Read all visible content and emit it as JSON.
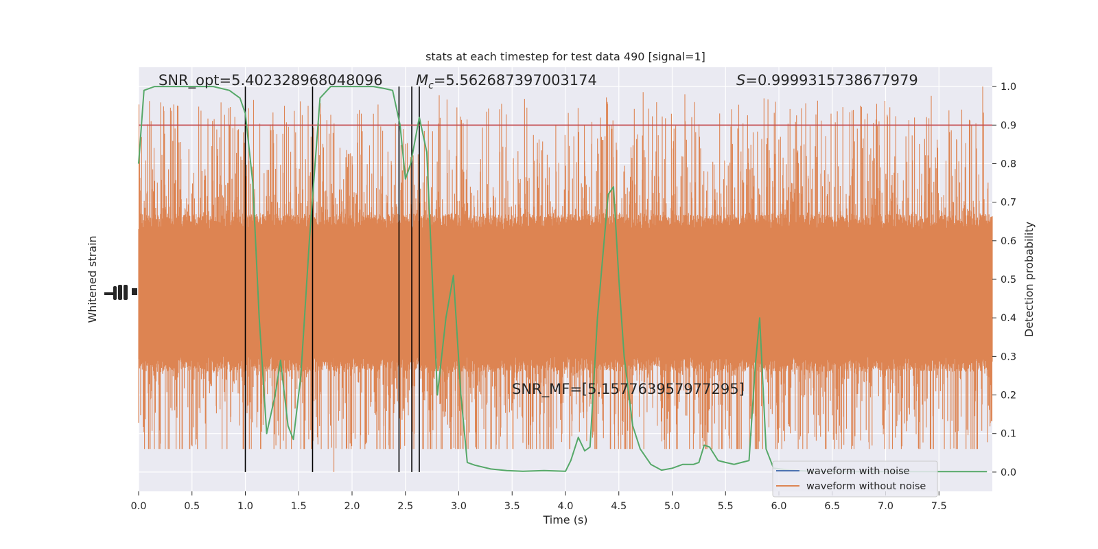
{
  "chart_data": {
    "type": "line",
    "title": "stats at each timestep for test data 490 [signal=1]",
    "xlabel": "Time (s)",
    "ylabel_left": "Whitened strain",
    "ylabel_right": "Detection probability",
    "xlim": [
      0.0,
      8.0
    ],
    "ylim_right": [
      -0.05,
      1.05
    ],
    "x_ticks": [
      "0.0",
      "0.5",
      "1.0",
      "1.5",
      "2.0",
      "2.5",
      "3.0",
      "3.5",
      "4.0",
      "4.5",
      "5.0",
      "5.5",
      "6.0",
      "6.5",
      "7.0",
      "7.5"
    ],
    "right_ticks": [
      "0.0",
      "0.1",
      "0.2",
      "0.3",
      "0.4",
      "0.5",
      "0.6",
      "0.7",
      "0.8",
      "0.9",
      "1.0"
    ],
    "grid": true,
    "legend_position": "lower-right",
    "annotations": {
      "snr_opt": "SNR_opt=5.402328968048096",
      "mc_symbol": "M",
      "mc_subscript": "c",
      "mc_value": "=5.562687397003174",
      "s_symbol": "S",
      "s_value": "=0.9999315738677979",
      "snr_mf": "SNR_MF=[5.157763957977295]"
    },
    "threshold": {
      "y": 0.9,
      "color": "#c44e52"
    },
    "vertical_lines_x": [
      1.0,
      1.63,
      2.44,
      2.56,
      2.63
    ],
    "series": [
      {
        "name": "waveform with noise",
        "color": "#4c72b0"
      },
      {
        "name": "waveform without noise",
        "color": "#dd8452"
      }
    ],
    "noise_band": {
      "core_low": 0.3,
      "core_high": 0.63,
      "spike_max": 1.0,
      "spike_min": 0.0,
      "color": "#dd8452"
    },
    "probability": {
      "color": "#55a868",
      "x": [
        0.0,
        0.05,
        0.15,
        0.3,
        0.5,
        0.7,
        0.85,
        0.95,
        1.0,
        1.07,
        1.13,
        1.2,
        1.28,
        1.33,
        1.4,
        1.45,
        1.52,
        1.6,
        1.7,
        1.8,
        2.0,
        2.2,
        2.3,
        2.38,
        2.45,
        2.5,
        2.55,
        2.63,
        2.7,
        2.8,
        2.88,
        2.95,
        3.02,
        3.08,
        3.15,
        3.3,
        3.45,
        3.6,
        3.8,
        4.0,
        4.05,
        4.12,
        4.18,
        4.23,
        4.3,
        4.4,
        4.45,
        4.5,
        4.55,
        4.63,
        4.7,
        4.8,
        4.9,
        5.0,
        5.1,
        5.2,
        5.25,
        5.3,
        5.35,
        5.43,
        5.5,
        5.58,
        5.65,
        5.72,
        5.78,
        5.82,
        5.88,
        5.95,
        6.1,
        6.3,
        6.6,
        7.0,
        7.5,
        7.95
      ],
      "y": [
        0.8,
        0.99,
        1.0,
        1.0,
        1.0,
        1.0,
        0.99,
        0.97,
        0.93,
        0.75,
        0.4,
        0.1,
        0.2,
        0.29,
        0.12,
        0.085,
        0.25,
        0.6,
        0.97,
        1.0,
        1.0,
        1.0,
        0.995,
        0.99,
        0.9,
        0.76,
        0.8,
        0.92,
        0.83,
        0.2,
        0.4,
        0.51,
        0.2,
        0.025,
        0.018,
        0.008,
        0.004,
        0.002,
        0.004,
        0.002,
        0.03,
        0.09,
        0.055,
        0.065,
        0.4,
        0.72,
        0.74,
        0.5,
        0.3,
        0.12,
        0.06,
        0.02,
        0.005,
        0.01,
        0.02,
        0.02,
        0.025,
        0.07,
        0.065,
        0.03,
        0.025,
        0.02,
        0.025,
        0.03,
        0.28,
        0.4,
        0.06,
        0.01,
        0.005,
        0.002,
        0.001,
        0.001,
        0.001,
        0.001
      ]
    }
  }
}
